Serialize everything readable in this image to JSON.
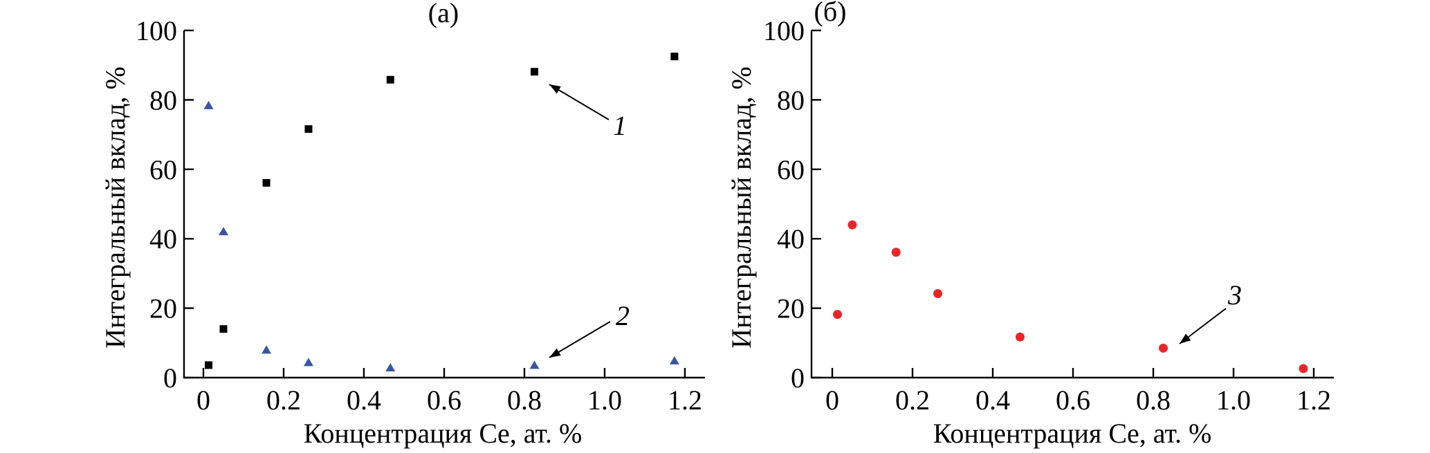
{
  "chart_data": [
    {
      "type": "scatter",
      "title": "(a)",
      "xlabel": "Концентрация Ce, ат. %",
      "ylabel": "Интегральный вклад, %",
      "xlim": [
        -0.05,
        1.25
      ],
      "ylim": [
        0,
        100
      ],
      "xticks": [
        0,
        0.2,
        0.4,
        0.6,
        0.8,
        1.0,
        1.2
      ],
      "xtick_labels": [
        "0",
        "0.2",
        "0.4",
        "0.6",
        "0.8",
        "1.0",
        "1.2"
      ],
      "yticks": [
        0,
        20,
        40,
        60,
        80,
        100
      ],
      "ytick_labels": [
        "0",
        "20",
        "40",
        "60",
        "80",
        "100"
      ],
      "grid": false,
      "series": [
        {
          "marker": "square",
          "color": "#000000",
          "x": [
            0.013,
            0.05,
            0.157,
            0.262,
            0.466,
            0.825,
            1.174
          ],
          "y": [
            3.6,
            14.0,
            56.1,
            71.6,
            85.8,
            88.1,
            92.5
          ]
        },
        {
          "marker": "triangle",
          "color": "#3a55a4",
          "x": [
            0.013,
            0.05,
            0.157,
            0.262,
            0.466,
            0.825,
            1.174
          ],
          "y": [
            78.3,
            42.0,
            7.9,
            4.3,
            2.8,
            3.5,
            4.8
          ]
        }
      ],
      "annotations": [
        {
          "text": "1",
          "series": 0,
          "point": 5
        },
        {
          "text": "2",
          "series": 1,
          "point": 5
        }
      ]
    },
    {
      "type": "scatter",
      "title": "(б)",
      "xlabel": "Концентрация Ce, ат. %",
      "ylabel": "Интегральный вклад, %",
      "xlim": [
        -0.05,
        1.25
      ],
      "ylim": [
        0,
        100
      ],
      "xticks": [
        0,
        0.2,
        0.4,
        0.6,
        0.8,
        1.0,
        1.2
      ],
      "xtick_labels": [
        "0",
        "0.2",
        "0.4",
        "0.6",
        "0.8",
        "1.0",
        "1.2"
      ],
      "yticks": [
        0,
        20,
        40,
        60,
        80,
        100
      ],
      "ytick_labels": [
        "0",
        "20",
        "40",
        "60",
        "80",
        "100"
      ],
      "grid": false,
      "series": [
        {
          "marker": "circle",
          "color": "#e8262a",
          "x": [
            0.013,
            0.05,
            0.159,
            0.263,
            0.468,
            0.825,
            1.174
          ],
          "y": [
            18.2,
            44.0,
            36.1,
            24.2,
            11.7,
            8.5,
            2.6
          ]
        }
      ],
      "annotations": [
        {
          "text": "3",
          "series": 0,
          "point": 5
        }
      ]
    }
  ]
}
